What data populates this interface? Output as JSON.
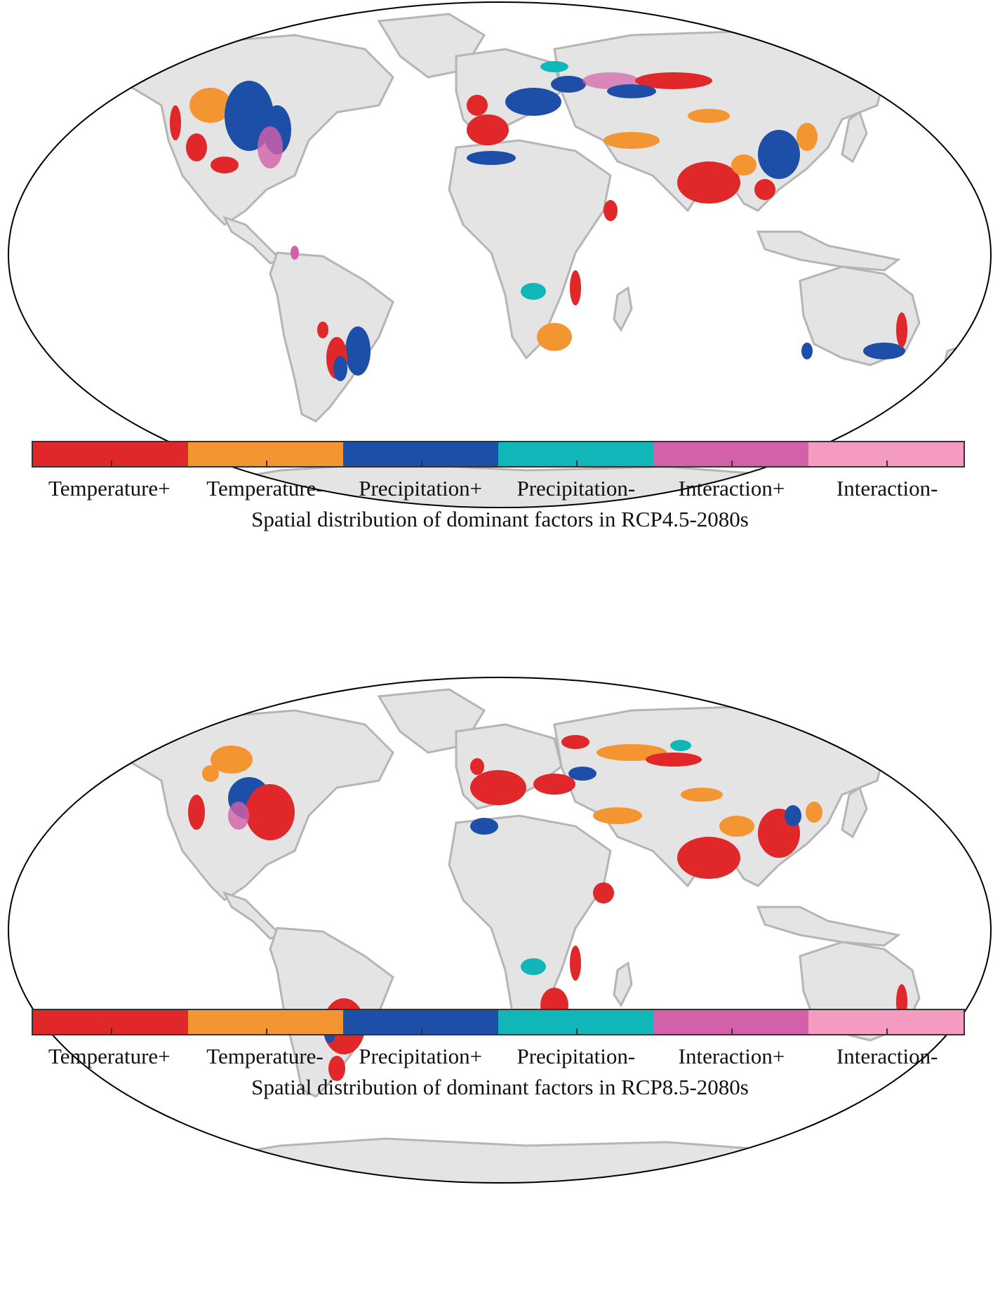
{
  "legend": {
    "items": [
      {
        "label": "Temperature+",
        "color": "#e0282b"
      },
      {
        "label": "Temperature-",
        "color": "#f39632"
      },
      {
        "label": "Precipitation+",
        "color": "#1e4fa8"
      },
      {
        "label": "Precipitation-",
        "color": "#11b6b8"
      },
      {
        "label": "Interaction+",
        "color": "#d360a8"
      },
      {
        "label": "Interaction-",
        "color": "#f59ac0"
      }
    ]
  },
  "maps": [
    {
      "caption": "Spatial distribution of dominant factors in RCP4.5-2080s"
    },
    {
      "caption": "Spatial distribution of dominant factors in RCP8.5-2080s"
    }
  ],
  "colors": {
    "land": "#e4e4e4",
    "border": "#b5b5b5",
    "ocean": "#ffffff"
  }
}
